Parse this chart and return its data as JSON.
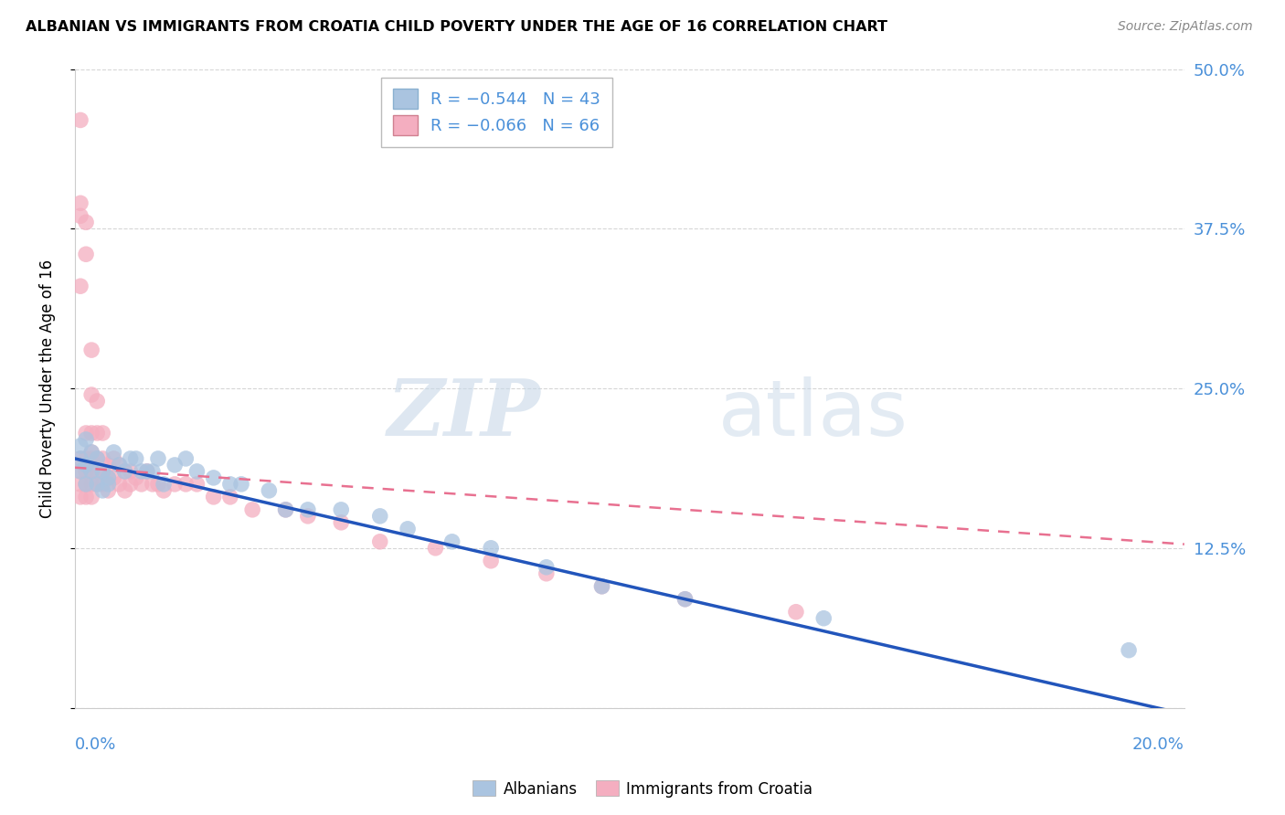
{
  "title": "ALBANIAN VS IMMIGRANTS FROM CROATIA CHILD POVERTY UNDER THE AGE OF 16 CORRELATION CHART",
  "source": "Source: ZipAtlas.com",
  "ylabel": "Child Poverty Under the Age of 16",
  "yticks": [
    0.0,
    0.125,
    0.25,
    0.375,
    0.5
  ],
  "ytick_labels": [
    "",
    "12.5%",
    "25.0%",
    "37.5%",
    "50.0%"
  ],
  "xlim": [
    0.0,
    0.2
  ],
  "ylim": [
    0.0,
    0.5
  ],
  "watermark_zip": "ZIP",
  "watermark_atlas": "atlas",
  "blue_color": "#aac4e0",
  "pink_color": "#f4aec0",
  "blue_line_color": "#2255bb",
  "pink_line_color": "#e87090",
  "albanians_x": [
    0.001,
    0.001,
    0.001,
    0.002,
    0.002,
    0.002,
    0.003,
    0.003,
    0.004,
    0.004,
    0.005,
    0.005,
    0.006,
    0.006,
    0.007,
    0.008,
    0.009,
    0.01,
    0.011,
    0.012,
    0.013,
    0.014,
    0.015,
    0.016,
    0.018,
    0.02,
    0.022,
    0.025,
    0.028,
    0.03,
    0.035,
    0.038,
    0.042,
    0.048,
    0.055,
    0.06,
    0.068,
    0.075,
    0.085,
    0.095,
    0.11,
    0.135,
    0.19
  ],
  "albanians_y": [
    0.205,
    0.195,
    0.185,
    0.21,
    0.19,
    0.175,
    0.2,
    0.185,
    0.195,
    0.175,
    0.185,
    0.17,
    0.18,
    0.175,
    0.2,
    0.19,
    0.185,
    0.195,
    0.195,
    0.185,
    0.185,
    0.185,
    0.195,
    0.175,
    0.19,
    0.195,
    0.185,
    0.18,
    0.175,
    0.175,
    0.17,
    0.155,
    0.155,
    0.155,
    0.15,
    0.14,
    0.13,
    0.125,
    0.11,
    0.095,
    0.085,
    0.07,
    0.045
  ],
  "croatia_x": [
    0.001,
    0.001,
    0.001,
    0.001,
    0.001,
    0.001,
    0.001,
    0.001,
    0.002,
    0.002,
    0.002,
    0.002,
    0.002,
    0.002,
    0.002,
    0.003,
    0.003,
    0.003,
    0.003,
    0.003,
    0.003,
    0.003,
    0.003,
    0.004,
    0.004,
    0.004,
    0.004,
    0.004,
    0.005,
    0.005,
    0.005,
    0.005,
    0.006,
    0.006,
    0.006,
    0.007,
    0.007,
    0.008,
    0.008,
    0.009,
    0.009,
    0.01,
    0.01,
    0.011,
    0.012,
    0.013,
    0.014,
    0.015,
    0.016,
    0.018,
    0.02,
    0.022,
    0.025,
    0.028,
    0.032,
    0.038,
    0.042,
    0.048,
    0.055,
    0.065,
    0.075,
    0.085,
    0.095,
    0.11,
    0.13
  ],
  "croatia_y": [
    0.46,
    0.395,
    0.385,
    0.33,
    0.195,
    0.185,
    0.175,
    0.165,
    0.38,
    0.355,
    0.215,
    0.195,
    0.185,
    0.175,
    0.165,
    0.28,
    0.245,
    0.215,
    0.2,
    0.195,
    0.185,
    0.175,
    0.165,
    0.24,
    0.215,
    0.195,
    0.185,
    0.175,
    0.215,
    0.195,
    0.185,
    0.175,
    0.19,
    0.18,
    0.17,
    0.195,
    0.18,
    0.19,
    0.175,
    0.185,
    0.17,
    0.185,
    0.175,
    0.18,
    0.175,
    0.185,
    0.175,
    0.175,
    0.17,
    0.175,
    0.175,
    0.175,
    0.165,
    0.165,
    0.155,
    0.155,
    0.15,
    0.145,
    0.13,
    0.125,
    0.115,
    0.105,
    0.095,
    0.085,
    0.075
  ],
  "blue_trend_x0": 0.0,
  "blue_trend_y0": 0.195,
  "blue_trend_x1": 0.2,
  "blue_trend_y1": -0.005,
  "pink_trend_x0": 0.0,
  "pink_trend_y0": 0.188,
  "pink_trend_x1": 0.2,
  "pink_trend_y1": 0.128
}
